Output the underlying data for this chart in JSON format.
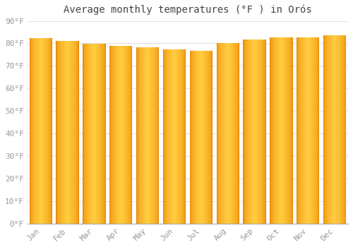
{
  "title": "Average monthly temperatures (°F ) in Orós",
  "months": [
    "Jan",
    "Feb",
    "Mar",
    "Apr",
    "May",
    "Jun",
    "Jul",
    "Aug",
    "Sep",
    "Oct",
    "Nov",
    "Dec"
  ],
  "values": [
    82.2,
    81.0,
    79.7,
    78.8,
    78.3,
    77.2,
    76.8,
    80.2,
    81.7,
    82.6,
    82.8,
    83.7
  ],
  "bar_color_center": "#FFCC44",
  "bar_color_edge": "#F5A800",
  "bar_color_dark": "#E08000",
  "background_color": "#FFFFFF",
  "grid_color": "#E0E0E8",
  "tick_label_color": "#999999",
  "title_color": "#444444",
  "ylim": [
    0,
    90
  ],
  "yticks": [
    0,
    10,
    20,
    30,
    40,
    50,
    60,
    70,
    80,
    90
  ],
  "ytick_labels": [
    "0°F",
    "10°F",
    "20°F",
    "30°F",
    "40°F",
    "50°F",
    "60°F",
    "70°F",
    "80°F",
    "90°F"
  ],
  "font_family": "monospace",
  "title_fontsize": 10,
  "tick_fontsize": 8,
  "bar_width": 0.85,
  "gradient_steps": 50
}
